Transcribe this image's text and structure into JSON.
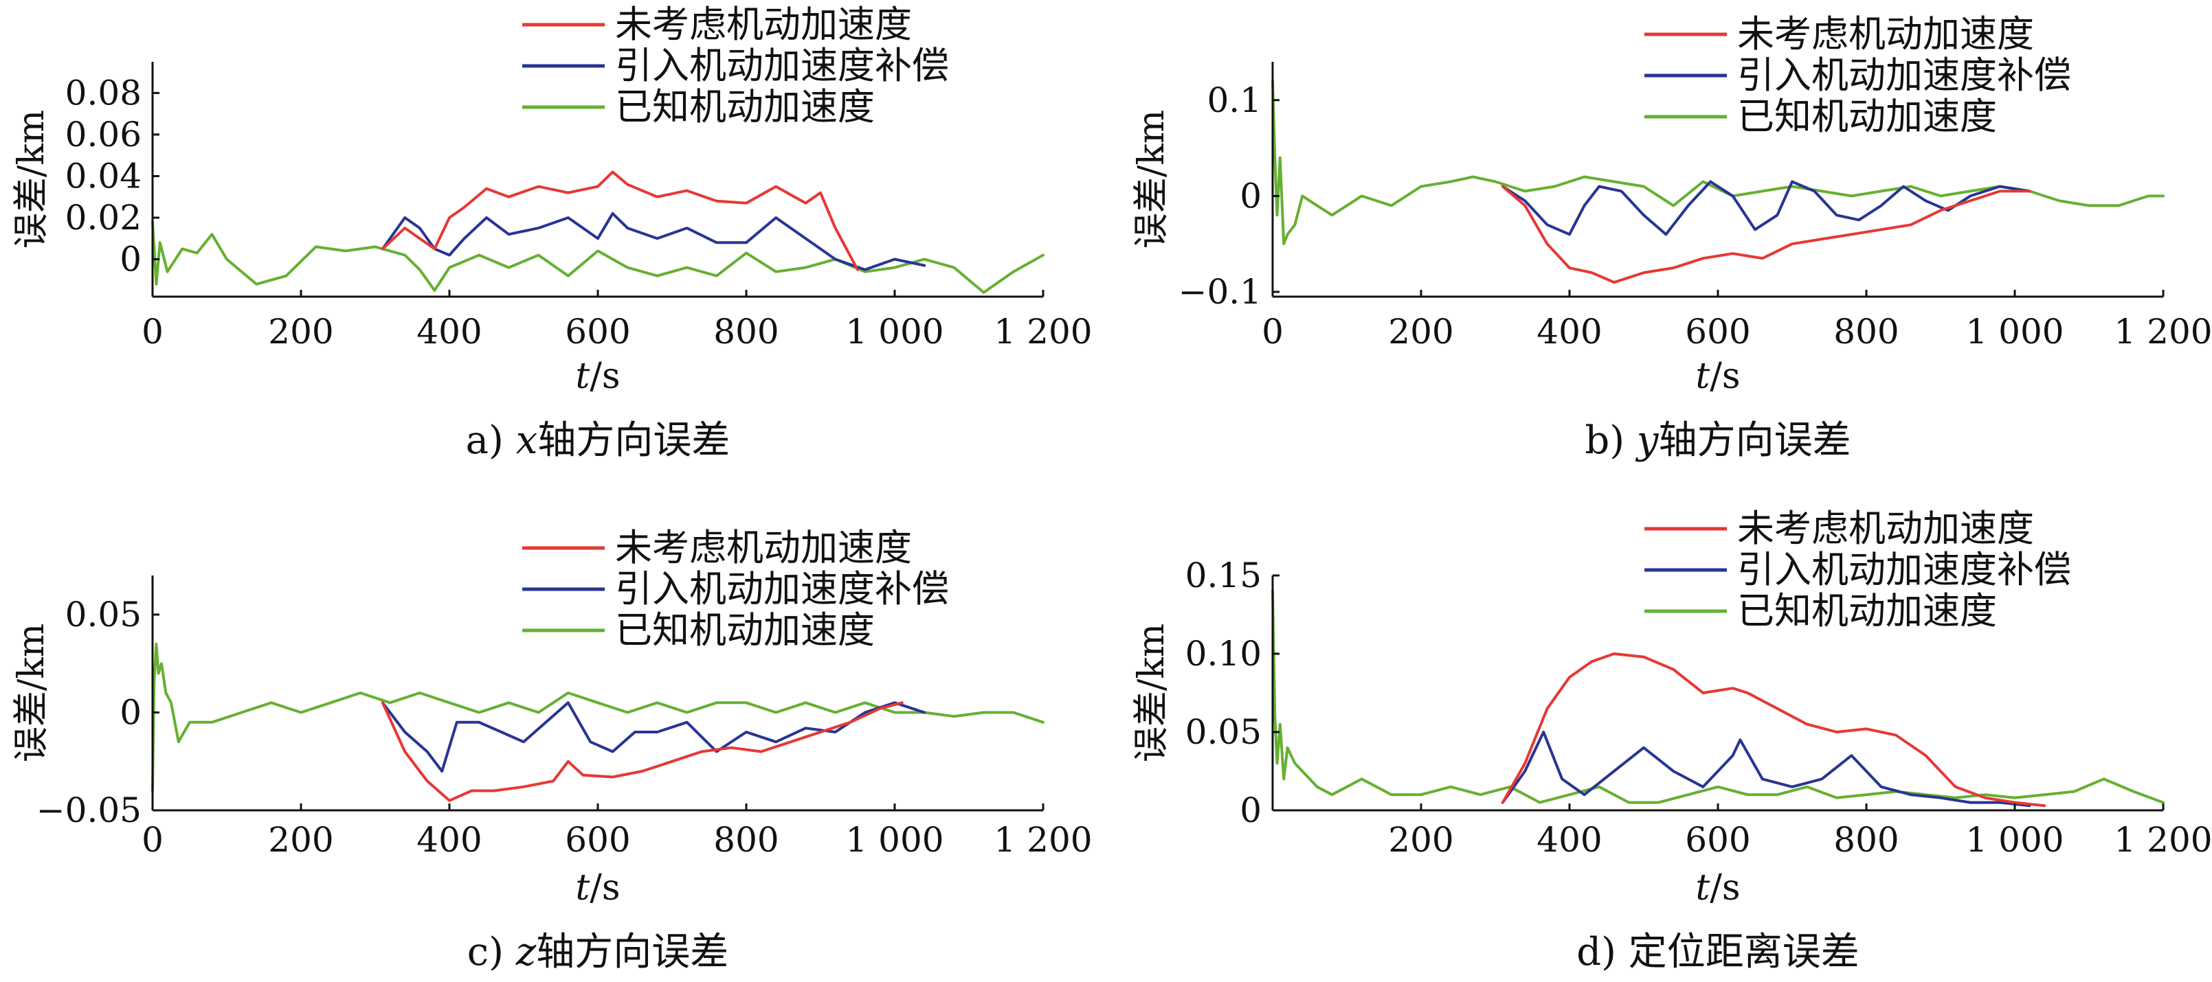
{
  "figure": {
    "colors": {
      "red": "#e53935",
      "blue": "#283593",
      "green": "#66b032"
    }
  },
  "chart_data": [
    {
      "type": "line",
      "caption": "a) x轴方向误差",
      "caption_prefix": "a) ",
      "caption_var": "x",
      "caption_suffix": "轴方向误差",
      "xlabel_var": "t",
      "xlabel_unit": "/s",
      "ylabel": "误差/km",
      "xlim": [
        0,
        1200
      ],
      "ylim": [
        -0.018,
        0.095
      ],
      "xticks": [
        0,
        200,
        400,
        600,
        800,
        1000,
        1200
      ],
      "xtick_labels": [
        "0",
        "200",
        "400",
        "600",
        "800",
        "1 000",
        "1 200"
      ],
      "yticks": [
        0,
        0.02,
        0.04,
        0.06,
        0.08
      ],
      "ytick_labels": [
        "0",
        "0.02",
        "0.04",
        "0.06",
        "0.08"
      ],
      "legend": [
        "未考虑机动加速度",
        "引入机动加速度补偿",
        "已知机动加速度"
      ],
      "series": [
        {
          "name": "未考虑机动加速度",
          "color": "#e53935",
          "x": [
            310,
            340,
            360,
            380,
            400,
            420,
            450,
            480,
            520,
            560,
            600,
            620,
            640,
            680,
            720,
            760,
            800,
            840,
            880,
            900,
            920,
            950
          ],
          "y": [
            0.005,
            0.015,
            0.01,
            0.005,
            0.02,
            0.025,
            0.034,
            0.03,
            0.035,
            0.032,
            0.035,
            0.042,
            0.036,
            0.03,
            0.033,
            0.028,
            0.027,
            0.035,
            0.027,
            0.032,
            0.015,
            -0.005
          ]
        },
        {
          "name": "引入机动加速度补偿",
          "color": "#283593",
          "x": [
            310,
            340,
            360,
            380,
            400,
            420,
            450,
            480,
            520,
            560,
            600,
            620,
            640,
            680,
            720,
            760,
            800,
            840,
            880,
            920,
            960,
            1000,
            1040
          ],
          "y": [
            0.005,
            0.02,
            0.015,
            0.005,
            0.002,
            0.01,
            0.02,
            0.012,
            0.015,
            0.02,
            0.01,
            0.022,
            0.015,
            0.01,
            0.015,
            0.008,
            0.008,
            0.02,
            0.01,
            0.0,
            -0.005,
            0.0,
            -0.003
          ]
        },
        {
          "name": "已知机动加速度",
          "color": "#66b032",
          "x": [
            0,
            5,
            10,
            20,
            40,
            60,
            80,
            100,
            140,
            180,
            220,
            260,
            300,
            340,
            360,
            380,
            400,
            440,
            480,
            520,
            560,
            600,
            640,
            680,
            720,
            760,
            800,
            840,
            880,
            920,
            960,
            1000,
            1040,
            1080,
            1120,
            1160,
            1200
          ],
          "y": [
            0.018,
            -0.012,
            0.008,
            -0.006,
            0.005,
            0.003,
            0.012,
            0.0,
            -0.012,
            -0.008,
            0.006,
            0.004,
            0.006,
            0.002,
            -0.005,
            -0.015,
            -0.004,
            0.002,
            -0.004,
            0.002,
            -0.008,
            0.004,
            -0.004,
            -0.008,
            -0.004,
            -0.008,
            0.003,
            -0.006,
            -0.004,
            0.0,
            -0.006,
            -0.004,
            0.0,
            -0.004,
            -0.016,
            -0.006,
            0.002
          ]
        }
      ]
    },
    {
      "type": "line",
      "caption": "b) y轴方向误差",
      "caption_prefix": "b) ",
      "caption_var": "y",
      "caption_suffix": "轴方向误差",
      "xlabel_var": "t",
      "xlabel_unit": "/s",
      "ylabel": "误差/km",
      "xlim": [
        0,
        1200
      ],
      "ylim": [
        -0.105,
        0.14
      ],
      "xticks": [
        0,
        200,
        400,
        600,
        800,
        1000,
        1200
      ],
      "xtick_labels": [
        "0",
        "200",
        "400",
        "600",
        "800",
        "1 000",
        "1 200"
      ],
      "yticks": [
        -0.1,
        0,
        0.1
      ],
      "ytick_labels": [
        "−0.1",
        "0",
        "0.1"
      ],
      "legend": [
        "未考虑机动加速度",
        "引入机动加速度补偿",
        "已知机动加速度"
      ],
      "series": [
        {
          "name": "未考虑机动加速度",
          "color": "#e53935",
          "x": [
            310,
            340,
            370,
            400,
            430,
            460,
            500,
            540,
            580,
            620,
            660,
            700,
            740,
            780,
            820,
            860,
            900,
            940,
            980,
            1020
          ],
          "y": [
            0.01,
            -0.01,
            -0.05,
            -0.075,
            -0.08,
            -0.09,
            -0.08,
            -0.075,
            -0.065,
            -0.06,
            -0.065,
            -0.05,
            -0.045,
            -0.04,
            -0.035,
            -0.03,
            -0.015,
            -0.005,
            0.005,
            0.005
          ]
        },
        {
          "name": "引入机动加速度补偿",
          "color": "#283593",
          "x": [
            310,
            340,
            370,
            400,
            420,
            440,
            470,
            500,
            530,
            560,
            590,
            620,
            650,
            680,
            700,
            730,
            760,
            790,
            820,
            850,
            880,
            910,
            940,
            980,
            1020
          ],
          "y": [
            0.01,
            -0.005,
            -0.03,
            -0.04,
            -0.01,
            0.01,
            0.005,
            -0.02,
            -0.04,
            -0.01,
            0.015,
            0.0,
            -0.035,
            -0.02,
            0.015,
            0.005,
            -0.02,
            -0.025,
            -0.01,
            0.01,
            -0.005,
            -0.015,
            0.0,
            0.01,
            0.005
          ]
        },
        {
          "name": "已知机动加速度",
          "color": "#66b032",
          "x": [
            0,
            3,
            6,
            10,
            15,
            20,
            30,
            40,
            60,
            80,
            120,
            160,
            200,
            240,
            270,
            300,
            340,
            380,
            420,
            460,
            500,
            540,
            580,
            620,
            660,
            700,
            740,
            780,
            820,
            860,
            900,
            940,
            980,
            1020,
            1060,
            1100,
            1140,
            1180,
            1200
          ],
          "y": [
            0.12,
            0.04,
            -0.02,
            0.04,
            -0.05,
            -0.04,
            -0.03,
            0.0,
            -0.01,
            -0.02,
            0.0,
            -0.01,
            0.01,
            0.015,
            0.02,
            0.015,
            0.005,
            0.01,
            0.02,
            0.015,
            0.01,
            -0.01,
            0.015,
            0.0,
            0.005,
            0.01,
            0.005,
            0.0,
            0.005,
            0.01,
            0.0,
            0.005,
            0.01,
            0.005,
            -0.005,
            -0.01,
            -0.01,
            0.0,
            0.0
          ]
        }
      ]
    },
    {
      "type": "line",
      "caption": "c) z轴方向误差",
      "caption_prefix": "c) ",
      "caption_var": "z",
      "caption_suffix": "轴方向误差",
      "xlabel_var": "t",
      "xlabel_unit": "/s",
      "ylabel": "误差/km",
      "xlim": [
        0,
        1200
      ],
      "ylim": [
        -0.05,
        0.07
      ],
      "xticks": [
        0,
        200,
        400,
        600,
        800,
        1000,
        1200
      ],
      "xtick_labels": [
        "0",
        "200",
        "400",
        "600",
        "800",
        "1 000",
        "1 200"
      ],
      "yticks": [
        -0.05,
        0,
        0.05
      ],
      "ytick_labels": [
        "−0.05",
        "0",
        "0.05"
      ],
      "legend": [
        "未考虑机动加速度",
        "引入机动加速度补偿",
        "已知机动加速度"
      ],
      "series": [
        {
          "name": "未考虑机动加速度",
          "color": "#e53935",
          "x": [
            310,
            340,
            370,
            400,
            430,
            460,
            500,
            540,
            560,
            580,
            620,
            660,
            700,
            740,
            780,
            820,
            860,
            900,
            940,
            980,
            1010
          ],
          "y": [
            0.005,
            -0.02,
            -0.035,
            -0.045,
            -0.04,
            -0.04,
            -0.038,
            -0.035,
            -0.025,
            -0.032,
            -0.033,
            -0.03,
            -0.025,
            -0.02,
            -0.018,
            -0.02,
            -0.015,
            -0.01,
            -0.005,
            0.002,
            0.005
          ]
        },
        {
          "name": "引入机动加速度补偿",
          "color": "#283593",
          "x": [
            310,
            340,
            370,
            390,
            410,
            440,
            470,
            500,
            530,
            560,
            590,
            620,
            650,
            680,
            720,
            760,
            800,
            840,
            880,
            920,
            960,
            1000,
            1040
          ],
          "y": [
            0.005,
            -0.01,
            -0.02,
            -0.03,
            -0.005,
            -0.005,
            -0.01,
            -0.015,
            -0.005,
            0.005,
            -0.015,
            -0.02,
            -0.01,
            -0.01,
            -0.005,
            -0.02,
            -0.01,
            -0.015,
            -0.008,
            -0.01,
            0.0,
            0.005,
            0.0
          ]
        },
        {
          "name": "已知机动加速度",
          "color": "#66b032",
          "x": [
            0,
            2,
            5,
            8,
            12,
            18,
            25,
            35,
            50,
            80,
            120,
            160,
            200,
            240,
            280,
            320,
            360,
            400,
            440,
            480,
            520,
            560,
            600,
            640,
            680,
            720,
            760,
            800,
            840,
            880,
            920,
            960,
            1000,
            1040,
            1080,
            1120,
            1160,
            1200
          ],
          "y": [
            -0.04,
            0.015,
            0.035,
            0.02,
            0.025,
            0.01,
            0.005,
            -0.015,
            -0.005,
            -0.005,
            0.0,
            0.005,
            0.0,
            0.005,
            0.01,
            0.005,
            0.01,
            0.005,
            0.0,
            0.005,
            0.0,
            0.01,
            0.005,
            0.0,
            0.005,
            0.0,
            0.005,
            0.005,
            0.0,
            0.005,
            0.0,
            0.005,
            0.0,
            0.0,
            -0.002,
            0.0,
            0.0,
            -0.005
          ]
        }
      ]
    },
    {
      "type": "line",
      "caption": "d) 定位距离误差",
      "caption_prefix": "d) ",
      "caption_var": "",
      "caption_suffix": "定位距离误差",
      "xlabel_var": "t",
      "xlabel_unit": "/s",
      "ylabel": "误差/km",
      "xlim": [
        0,
        1200
      ],
      "ylim": [
        0,
        0.15
      ],
      "xticks": [
        200,
        400,
        600,
        800,
        1000,
        1200
      ],
      "xtick_labels": [
        "200",
        "400",
        "600",
        "800",
        "1 000",
        "1 200"
      ],
      "yticks": [
        0,
        0.05,
        0.1,
        0.15
      ],
      "ytick_labels": [
        "0",
        "0.05",
        "0.10",
        "0.15"
      ],
      "legend": [
        "未考虑机动加速度",
        "引入机动加速度补偿",
        "已知机动加速度"
      ],
      "series": [
        {
          "name": "未考虑机动加速度",
          "color": "#e53935",
          "x": [
            310,
            340,
            370,
            400,
            430,
            460,
            500,
            540,
            580,
            620,
            640,
            680,
            720,
            760,
            800,
            840,
            880,
            920,
            960,
            1000,
            1040
          ],
          "y": [
            0.005,
            0.03,
            0.065,
            0.085,
            0.095,
            0.1,
            0.098,
            0.09,
            0.075,
            0.078,
            0.075,
            0.065,
            0.055,
            0.05,
            0.052,
            0.048,
            0.035,
            0.015,
            0.008,
            0.005,
            0.003
          ]
        },
        {
          "name": "引入机动加速度补偿",
          "color": "#283593",
          "x": [
            310,
            340,
            365,
            390,
            420,
            460,
            500,
            540,
            580,
            620,
            630,
            660,
            700,
            740,
            780,
            820,
            860,
            900,
            940,
            980,
            1020
          ],
          "y": [
            0.005,
            0.025,
            0.05,
            0.02,
            0.01,
            0.025,
            0.04,
            0.025,
            0.015,
            0.035,
            0.045,
            0.02,
            0.015,
            0.02,
            0.035,
            0.015,
            0.01,
            0.008,
            0.005,
            0.005,
            0.003
          ]
        },
        {
          "name": "已知机动加速度",
          "color": "#66b032",
          "x": [
            0,
            3,
            6,
            10,
            15,
            20,
            30,
            40,
            60,
            80,
            120,
            160,
            200,
            240,
            280,
            320,
            360,
            400,
            440,
            480,
            520,
            560,
            600,
            640,
            680,
            720,
            760,
            800,
            840,
            880,
            920,
            960,
            1000,
            1040,
            1080,
            1120,
            1160,
            1200
          ],
          "y": [
            0.14,
            0.06,
            0.03,
            0.055,
            0.02,
            0.04,
            0.03,
            0.025,
            0.015,
            0.01,
            0.02,
            0.01,
            0.01,
            0.015,
            0.01,
            0.015,
            0.005,
            0.01,
            0.015,
            0.005,
            0.005,
            0.01,
            0.015,
            0.01,
            0.01,
            0.015,
            0.008,
            0.01,
            0.012,
            0.01,
            0.008,
            0.01,
            0.008,
            0.01,
            0.012,
            0.02,
            0.012,
            0.005
          ]
        }
      ]
    }
  ]
}
